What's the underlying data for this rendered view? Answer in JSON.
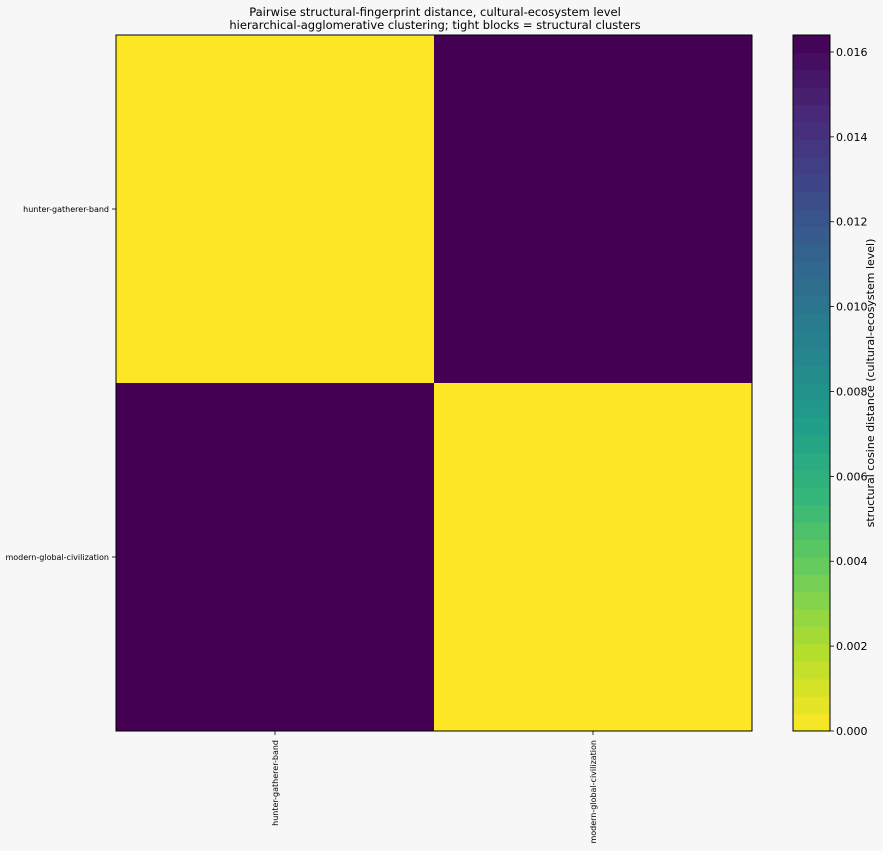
{
  "chart_data": {
    "type": "heatmap",
    "title": "Pairwise structural-fingerprint distance, cultural-ecosystem level",
    "subtitle": "hierarchical-agglomerative clustering; tight blocks = structural clusters",
    "row_labels": [
      "hunter-gatherer-band",
      "modern-global-civilization"
    ],
    "col_labels": [
      "hunter-gatherer-band",
      "modern-global-civilization"
    ],
    "values": [
      [
        0.0,
        0.0164
      ],
      [
        0.0164,
        0.0
      ]
    ],
    "colorbar": {
      "label": "structural cosine distance (cultural-ecosystem level)",
      "range": [
        0.0,
        0.0164
      ],
      "ticks": [
        "0.000",
        "0.002",
        "0.004",
        "0.006",
        "0.008",
        "0.010",
        "0.012",
        "0.014",
        "0.016"
      ],
      "colormap": "viridis_r",
      "colors": [
        "#fde725",
        "#b5de2b",
        "#6ece58",
        "#35b779",
        "#1f9e89",
        "#26828e",
        "#31688e",
        "#3e4989",
        "#482878",
        "#440154"
      ]
    }
  }
}
